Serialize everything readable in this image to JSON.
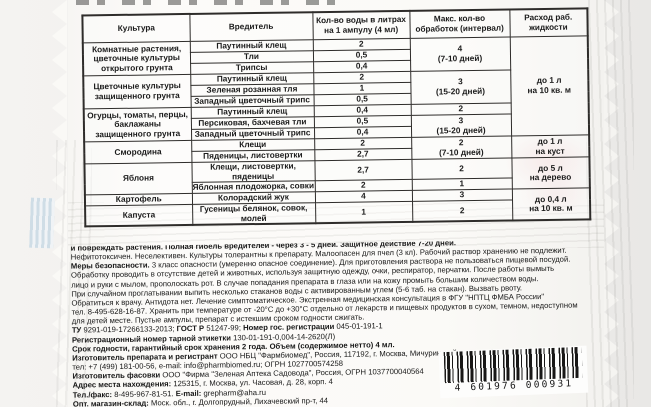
{
  "packet": {
    "table": {
      "headers": [
        "Культура",
        "Вредитель",
        "Кол-во воды в литрах\nна 1 ампулу (4 мл)",
        "Макс. кол-во\nобработок (интервал)",
        "Расход раб.\nжидкости"
      ],
      "cultures": [
        "Комнатные растения,\nцветочные культуры\nоткрытого грунта",
        "Цветочные культуры\nзащищенного грунта",
        "Огурцы, томаты, перцы,\nбаклажаны\nзащищенного грунта",
        "Смородина",
        "Яблоня",
        "Картофель",
        "Капуста"
      ],
      "pests": [
        "Паутинный клещ",
        "Тли",
        "Трипсы",
        "Паутинный клещ",
        "Зеленая розанная тля",
        "Западный цветочный трипс",
        "Паутинный клещ",
        "Персиковая, бахчевая тли",
        "Западный цветочный трипс",
        "Клещи",
        "Пяденицы, листовертки",
        "Клещи, листовертки, пяденицы",
        "Яблонная плодожорка, совки",
        "Колорадский жук",
        "Гусеницы белянок, совок, молей"
      ],
      "water": [
        "2",
        "0,5",
        "0,4",
        "2",
        "1",
        "0,5",
        "0,4",
        "0,5",
        "0,4",
        "2",
        "2,7",
        "2,7",
        "2",
        "4",
        "1"
      ],
      "max": [
        "4\n(7-10 дней)",
        "3\n(15-20 дней)",
        "2",
        "3\n(15-20 дней)",
        "2\n(7-10 дней)",
        "2",
        "1",
        "3",
        "2"
      ],
      "rate": [
        "до 1 л\nна 10 кв. м",
        "до 1 л\nна куст",
        "до 5 л\nна дерево",
        "до 0,4 л\nна 10 кв. м"
      ]
    },
    "fineprint": {
      "lines": [
        [
          {
            "b": true,
            "t": "и повреждать растения. Полная гибель вредителей - через 3 - 5 дней. Защитное действие 7-20 дней."
          }
        ],
        [
          {
            "t": "Нефитотоксичен. Неселективен. Культуры толерантны к препарату. Малоопасен для пчел (3 кл). Рабочий раствор хранению не подлежит."
          }
        ],
        [
          {
            "b": true,
            "t": "Меры безопасности. "
          },
          {
            "t": "3 класс опасности (умеренно опасное соединение). Для приготовления раствора не пользоваться пищевой посудой."
          }
        ],
        [
          {
            "t": "Обработку проводить в отсутствие детей и животных, используя защитную одежду, очки, респиратор, перчатки. После работы вымыть"
          }
        ],
        [
          {
            "t": "лицо и руки с мылом, прополоскать рот. В случае попадания препарата в глаза или на кожу промыть большим количеством воды."
          }
        ],
        [
          {
            "t": "При случайном проглатывании выпить несколько стаканов воды с активированным углем (5-6 таб. на стакан). Вызвать рвоту."
          }
        ],
        [
          {
            "t": "Обратиться к врачу. Антидота нет. Лечение симптоматическое. Экстренная медицинская консультация в ФГУ \"НПТЦ ФМБА России\""
          }
        ],
        [
          {
            "t": "тел. 8-495-628-16-87. Хранить при температуре от -20°С до +30°С отдельно от лекарств и пищевых продуктов в сухом, темном, недоступном"
          }
        ],
        [
          {
            "t": "для детей месте. Пустые ампулы, препарат с истекшим сроком годности сжигать."
          }
        ],
        [
          {
            "b": true,
            "t": "ТУ "
          },
          {
            "t": "9291-019-17266133-2013; "
          },
          {
            "b": true,
            "t": "ГОСТ Р "
          },
          {
            "t": "51247-99; "
          },
          {
            "b": true,
            "t": "Номер гос. регистрации "
          },
          {
            "t": "045-01-191-1"
          }
        ],
        [
          {
            "b": true,
            "t": "Регистрационный номер тарной этикетки "
          },
          {
            "t": "130-01-191-0,004-14-2620(Л)"
          }
        ],
        [
          {
            "b": true,
            "t": "Срок годности, гарантийный срок хранения 2 года. Объем (содержимое нетто) 4 мл."
          }
        ],
        [
          {
            "b": true,
            "t": "Изготовитель препарата и регистрант "
          },
          {
            "t": "ООО НБЦ \"Фармбиомед\", Россия, 117192, г. Москва, Мичуринский пр-т, д. 12, к. 1,"
          }
        ],
        [
          {
            "t": "тел: +7 (499) 181-00-56, e-mail: info@pharmbiomed.ru; ОГРН 1027700574258"
          }
        ],
        [
          {
            "b": true,
            "t": "Изготовитель фасовки "
          },
          {
            "t": "ООО \"Фирма \"Зеленая Аптека Садовода\", Россия, ОГРН 1037700040564"
          }
        ],
        [
          {
            "b": true,
            "t": "Адрес места нахождения: "
          },
          {
            "t": "125315, г. Москва, ул. Часовая, д. 28, корп. 4"
          }
        ],
        [
          {
            "b": true,
            "t": "Тел./факс: "
          },
          {
            "t": "8-495-967-81-51. "
          },
          {
            "b": true,
            "t": "E-mail: "
          },
          {
            "t": "grepharm@aha.ru"
          }
        ],
        [
          {
            "b": true,
            "t": "Опт. магазин-склад: "
          },
          {
            "t": "Моск. обл., г. Долгопрудный, Лихачевский пр-т, 44"
          }
        ],
        [
          {
            "b": true,
            "t": "Дата изготовления и номер партии указаны на кромке пакета."
          }
        ]
      ]
    },
    "barcode_digits": "4 601976 000931"
  }
}
